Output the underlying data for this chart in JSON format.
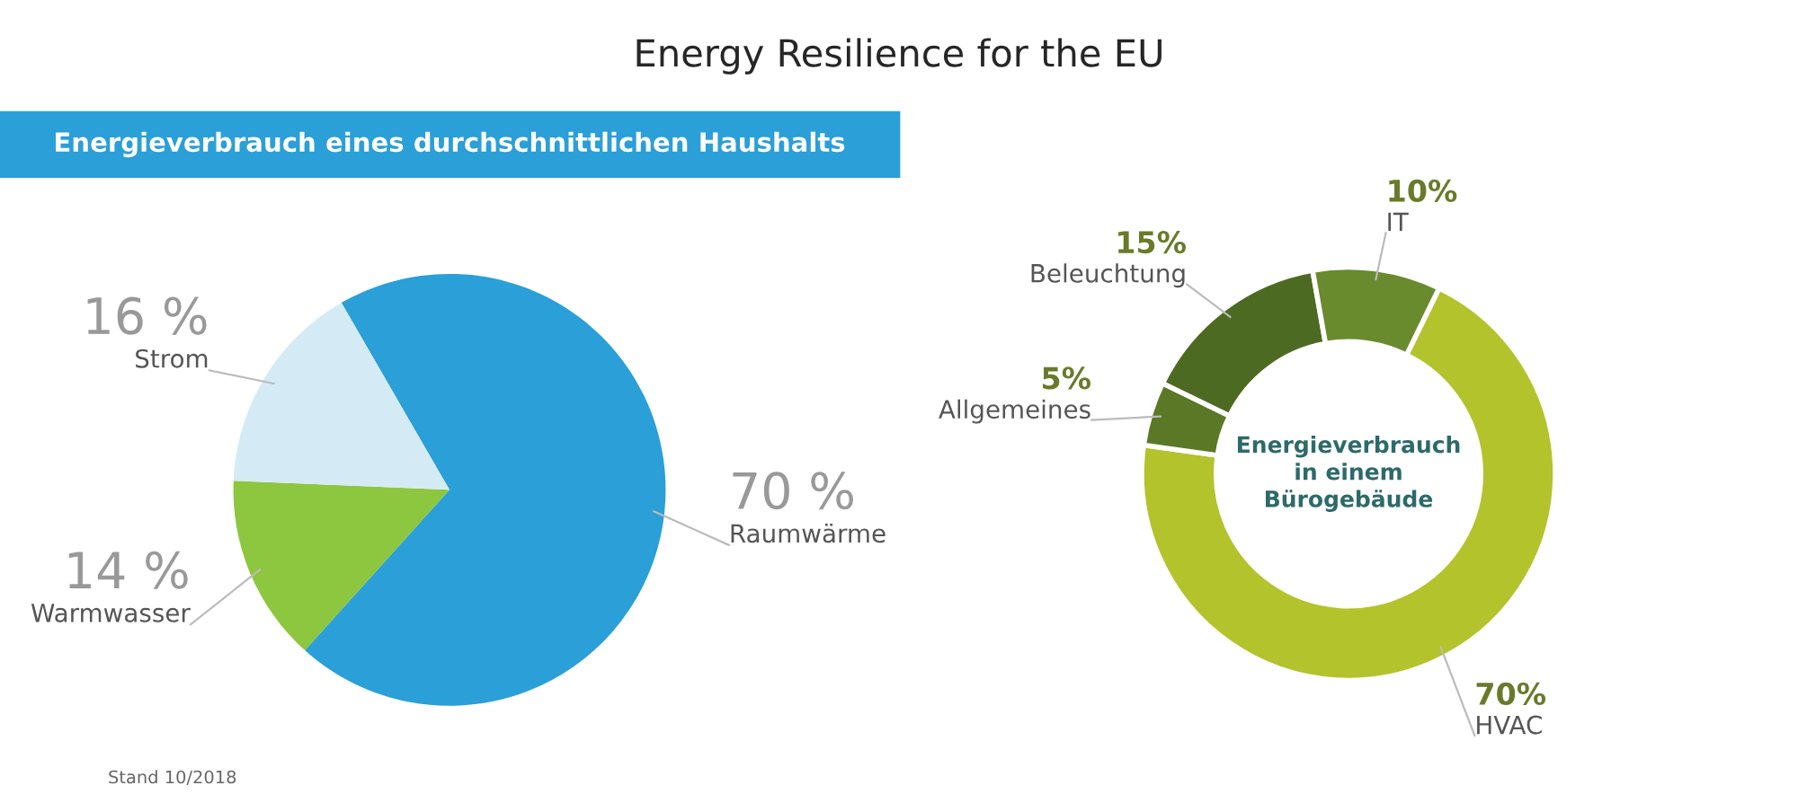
{
  "chart_data": [
    {
      "type": "pie",
      "title": "Energieverbrauch eines durchschnittlichen Haushalts",
      "categories": [
        "Raumwärme",
        "Warmwasser",
        "Strom"
      ],
      "values": [
        70,
        14,
        16
      ],
      "colors": [
        "#2a9fd8",
        "#8dc63f",
        "#d4ebf6"
      ],
      "value_labels": [
        "70 %",
        "14 %",
        "16 %"
      ],
      "annotations": [
        "Energy Resilience for the EU",
        "Stand 10/2018"
      ]
    },
    {
      "type": "donut",
      "categories": [
        "HVAC",
        "Allgemeines",
        "Beleuchtung",
        "IT"
      ],
      "values": [
        70,
        5,
        15,
        10
      ],
      "colors": [
        "#b3c32c",
        "#5b7826",
        "#4d6a22",
        "#6a8a2e"
      ],
      "value_labels": [
        "70%",
        "5%",
        "15%",
        "10%"
      ],
      "annotations": [
        "Energieverbrauch\nin einem\nBürogebäude"
      ]
    }
  ]
}
